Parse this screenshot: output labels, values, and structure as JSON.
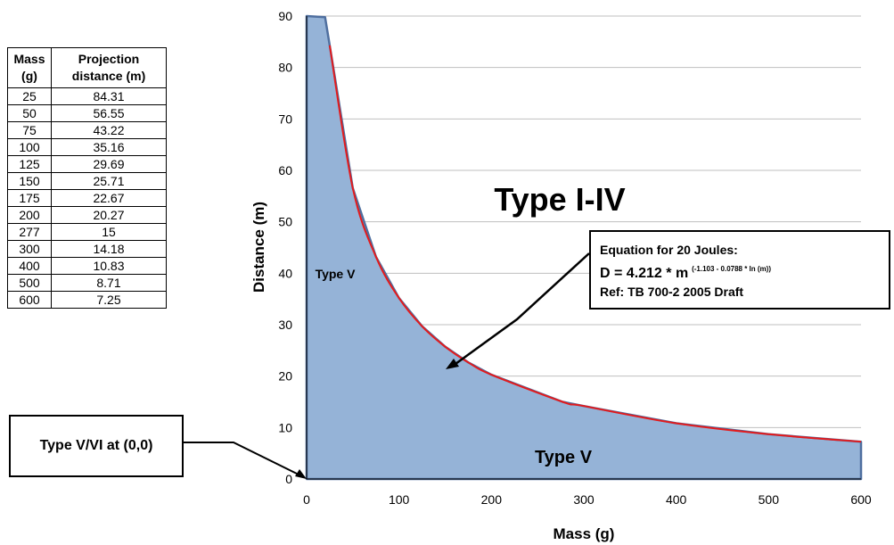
{
  "table": {
    "headers": {
      "mass": "Mass (g)",
      "distance": "Projection distance (m)"
    },
    "rows": [
      [
        "25",
        "84.31"
      ],
      [
        "50",
        "56.55"
      ],
      [
        "75",
        "43.22"
      ],
      [
        "100",
        "35.16"
      ],
      [
        "125",
        "29.69"
      ],
      [
        "150",
        "25.71"
      ],
      [
        "175",
        "22.67"
      ],
      [
        "200",
        "20.27"
      ],
      [
        "277",
        "15"
      ],
      [
        "300",
        "14.18"
      ],
      [
        "400",
        "10.83"
      ],
      [
        "500",
        "8.71"
      ],
      [
        "600",
        "7.25"
      ]
    ]
  },
  "callouts": {
    "origin": "Type V/VI at (0,0)",
    "equation_title": "Equation for 20 Joules:",
    "equation_prefix": "D = 4.212 * m",
    "equation_exponent": "(-1.103 - 0.0788 * ln (m))",
    "reference": "Ref: TB 700-2 2005 Draft"
  },
  "colors": {
    "fill": "#95b3d7",
    "fill_edge": "#4f6f9f",
    "curve": "#e41a1c",
    "grid": "#bfbfbf",
    "axis": "#000000"
  },
  "chart_data": {
    "type": "area",
    "xlabel": "Mass (g)",
    "ylabel": "Distance (m)",
    "xlim": [
      0,
      600
    ],
    "ylim": [
      0,
      90
    ],
    "x_ticks": [
      0,
      100,
      200,
      300,
      400,
      500,
      600
    ],
    "y_ticks": [
      0,
      10,
      20,
      30,
      40,
      50,
      60,
      70,
      80,
      90
    ],
    "grid": "horizontal",
    "region_labels": {
      "above": "Type I-IV",
      "left": "Type V",
      "bottom": "Type V"
    },
    "series": [
      {
        "kind": "area",
        "x": [
          0,
          0,
          20,
          25,
          50,
          75,
          100,
          125,
          150,
          175,
          200,
          277,
          300,
          400,
          500,
          600,
          600
        ],
        "y": [
          0,
          90,
          89.8,
          84.31,
          56.55,
          43.22,
          35.16,
          29.69,
          25.71,
          22.67,
          20.27,
          15,
          14.18,
          10.83,
          8.71,
          7.25,
          0
        ]
      },
      {
        "kind": "line",
        "x": [
          25,
          50,
          75,
          100,
          125,
          150,
          175,
          200,
          277,
          300,
          400,
          500,
          600
        ],
        "y": [
          84.31,
          56.55,
          43.22,
          35.16,
          29.69,
          25.71,
          22.67,
          20.27,
          15,
          14.18,
          10.83,
          8.71,
          7.25
        ]
      }
    ]
  }
}
